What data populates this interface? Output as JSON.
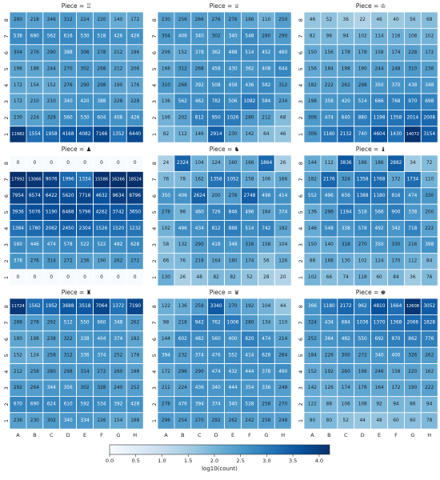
{
  "chart_data": {
    "type": "heatmap",
    "files": [
      "A",
      "B",
      "C",
      "D",
      "E",
      "F",
      "G",
      "H"
    ],
    "ranks": [
      "8",
      "7",
      "6",
      "5",
      "4",
      "3",
      "2",
      "1"
    ],
    "color_scale": "log10",
    "colormap": [
      "#f7fbff",
      "#deebf7",
      "#c6dbef",
      "#9ecae1",
      "#6baed6",
      "#4292c6",
      "#2171b5",
      "#08519c",
      "#08306b"
    ],
    "colorbar": {
      "label": "log10(count)",
      "ticks": [
        "0.0",
        "0.5",
        "1.0",
        "1.5",
        "2.0",
        "2.5",
        "3.0",
        "3.5",
        "4.0"
      ],
      "range": [
        0,
        4.2
      ]
    },
    "panels": [
      {
        "title": "Piece = ♖",
        "values": [
          [
            280,
            218,
            246,
            312,
            224,
            220,
            140,
            172
          ],
          [
            538,
            680,
            562,
            616,
            530,
            518,
            426,
            426
          ],
          [
            304,
            276,
            290,
            388,
            306,
            278,
            212,
            196
          ],
          [
            196,
            188,
            244,
            270,
            302,
            268,
            212,
            206
          ],
          [
            172,
            154,
            152,
            276,
            290,
            298,
            190,
            176
          ],
          [
            172,
            210,
            210,
            340,
            420,
            388,
            228,
            228
          ],
          [
            230,
            224,
            328,
            560,
            530,
            604,
            408,
            426
          ],
          [
            11982,
            1554,
            1958,
            4168,
            4082,
            7166,
            1352,
            6440
          ]
        ]
      },
      {
        "title": "Piece = ♕",
        "values": [
          [
            230,
            256,
            266,
            276,
            276,
            186,
            110,
            250
          ],
          [
            304,
            406,
            340,
            302,
            340,
            548,
            280,
            290
          ],
          [
            206,
            152,
            378,
            362,
            488,
            514,
            452,
            460
          ],
          [
            166,
            312,
            268,
            458,
            430,
            362,
            408,
            644
          ],
          [
            310,
            268,
            392,
            508,
            458,
            436,
            582,
            312
          ],
          [
            136,
            562,
            462,
            782,
            506,
            1082,
            584,
            234
          ],
          [
            106,
            202,
            812,
            950,
            1026,
            280,
            212,
            68
          ],
          [
            82,
            112,
            146,
            2914,
            230,
            142,
            64,
            46
          ]
        ]
      },
      {
        "title": "Piece = ♔",
        "values": [
          [
            46,
            52,
            36,
            22,
            46,
            40,
            56,
            68
          ],
          [
            82,
            96,
            94,
            102,
            114,
            116,
            108,
            102
          ],
          [
            150,
            156,
            178,
            178,
            158,
            174,
            228,
            172
          ],
          [
            156,
            184,
            198,
            190,
            244,
            248,
            310,
            236
          ],
          [
            182,
            222,
            262,
            298,
            350,
            370,
            438,
            348
          ],
          [
            198,
            358,
            420,
            514,
            666,
            768,
            970,
            698
          ],
          [
            306,
            474,
            640,
            880,
            1198,
            1358,
            2014,
            2008
          ],
          [
            306,
            1160,
            2132,
            740,
            4604,
            1430,
            14072,
            3154
          ]
        ]
      },
      {
        "title": "Piece = ♟",
        "values": [
          [
            0,
            0,
            0,
            0,
            0,
            0,
            0,
            0
          ],
          [
            17992,
            13066,
            9076,
            1996,
            1334,
            15586,
            16266,
            18524
          ],
          [
            7954,
            6574,
            6422,
            5620,
            7716,
            4632,
            9634,
            8796
          ],
          [
            3936,
            5076,
            5190,
            6468,
            5796,
            4262,
            3742,
            3650
          ],
          [
            1384,
            1780,
            2062,
            2450,
            2304,
            1526,
            1520,
            1232
          ],
          [
            560,
            446,
            474,
            578,
            522,
            522,
            482,
            628
          ],
          [
            378,
            276,
            314,
            272,
            236,
            190,
            262,
            272
          ],
          [
            0,
            0,
            0,
            0,
            0,
            0,
            0,
            0
          ]
        ]
      },
      {
        "title": "Piece = ♞",
        "values": [
          [
            24,
            2324,
            104,
            124,
            160,
            166,
            1864,
            26
          ],
          [
            76,
            78,
            162,
            1358,
            1052,
            158,
            106,
            166
          ],
          [
            350,
            406,
            2624,
            200,
            276,
            2748,
            498,
            414
          ],
          [
            278,
            98,
            460,
            726,
            846,
            496,
            164,
            374
          ],
          [
            102,
            496,
            434,
            812,
            888,
            514,
            742,
            192
          ],
          [
            58,
            132,
            290,
            418,
            348,
            316,
            158,
            104
          ],
          [
            66,
            76,
            218,
            164,
            180,
            174,
            56,
            126
          ],
          [
            130,
            26,
            48,
            82,
            82,
            52,
            28,
            20
          ]
        ]
      },
      {
        "title": "Piece = ♝",
        "values": [
          [
            144,
            112,
            3836,
            186,
            186,
            2882,
            34,
            72
          ],
          [
            182,
            2176,
            324,
            1358,
            1768,
            172,
            1734,
            110
          ],
          [
            552,
            496,
            656,
            1388,
            1180,
            816,
            474,
            330
          ],
          [
            136,
            296,
            1194,
            518,
            566,
            900,
            338,
            200
          ],
          [
            146,
            548,
            338,
            578,
            492,
            342,
            718,
            222
          ],
          [
            150,
            140,
            318,
            270,
            350,
            330,
            216,
            398
          ],
          [
            88,
            168,
            130,
            102,
            124,
            170,
            112,
            84
          ],
          [
            102,
            66,
            74,
            118,
            60,
            84,
            36,
            76
          ]
        ]
      },
      {
        "title": "Piece = ♜",
        "values": [
          [
            11724,
            1562,
            1952,
            3688,
            3518,
            7064,
            1372,
            7190
          ],
          [
            286,
            278,
            292,
            512,
            550,
            660,
            348,
            262
          ],
          [
            180,
            198,
            238,
            322,
            338,
            404,
            374,
            192
          ],
          [
            152,
            124,
            258,
            312,
            336,
            374,
            252,
            178
          ],
          [
            212,
            258,
            280,
            298,
            314,
            272,
            260,
            198
          ],
          [
            292,
            264,
            344,
            356,
            302,
            328,
            240,
            252
          ],
          [
            670,
            690,
            624,
            610,
            592,
            534,
            392,
            428
          ],
          [
            236,
            230,
            302,
            340,
            334,
            226,
            154,
            188
          ]
        ]
      },
      {
        "title": "Piece = ♛",
        "values": [
          [
            122,
            136,
            258,
            3340,
            270,
            192,
            104,
            44
          ],
          [
            98,
            218,
            942,
            762,
            1006,
            280,
            134,
            110
          ],
          [
            144,
            602,
            482,
            560,
            400,
            820,
            474,
            214
          ],
          [
            394,
            232,
            374,
            476,
            552,
            414,
            628,
            284
          ],
          [
            172,
            296,
            290,
            474,
            432,
            444,
            378,
            490
          ],
          [
            212,
            224,
            436,
            340,
            444,
            354,
            336,
            248
          ],
          [
            278,
            476,
            394,
            374,
            340,
            528,
            258,
            270
          ],
          [
            296,
            254,
            270,
            292,
            262,
            242,
            258,
            248
          ]
        ]
      },
      {
        "title": "Piece = ♚",
        "values": [
          [
            366,
            1180,
            2172,
            962,
            4810,
            1664,
            12608,
            3052
          ],
          [
            324,
            434,
            684,
            1036,
            1370,
            1368,
            2066,
            1828
          ],
          [
            252,
            364,
            482,
            550,
            692,
            870,
            862,
            776
          ],
          [
            184,
            226,
            300,
            272,
            340,
            400,
            326,
            262
          ],
          [
            152,
            192,
            260,
            198,
            246,
            158,
            220,
            162
          ],
          [
            142,
            126,
            174,
            178,
            164,
            172,
            190,
            222
          ],
          [
            122,
            88,
            106,
            108,
            92,
            94,
            86,
            94
          ],
          [
            90,
            80,
            52,
            44,
            48,
            60,
            60,
            78
          ]
        ]
      }
    ]
  }
}
